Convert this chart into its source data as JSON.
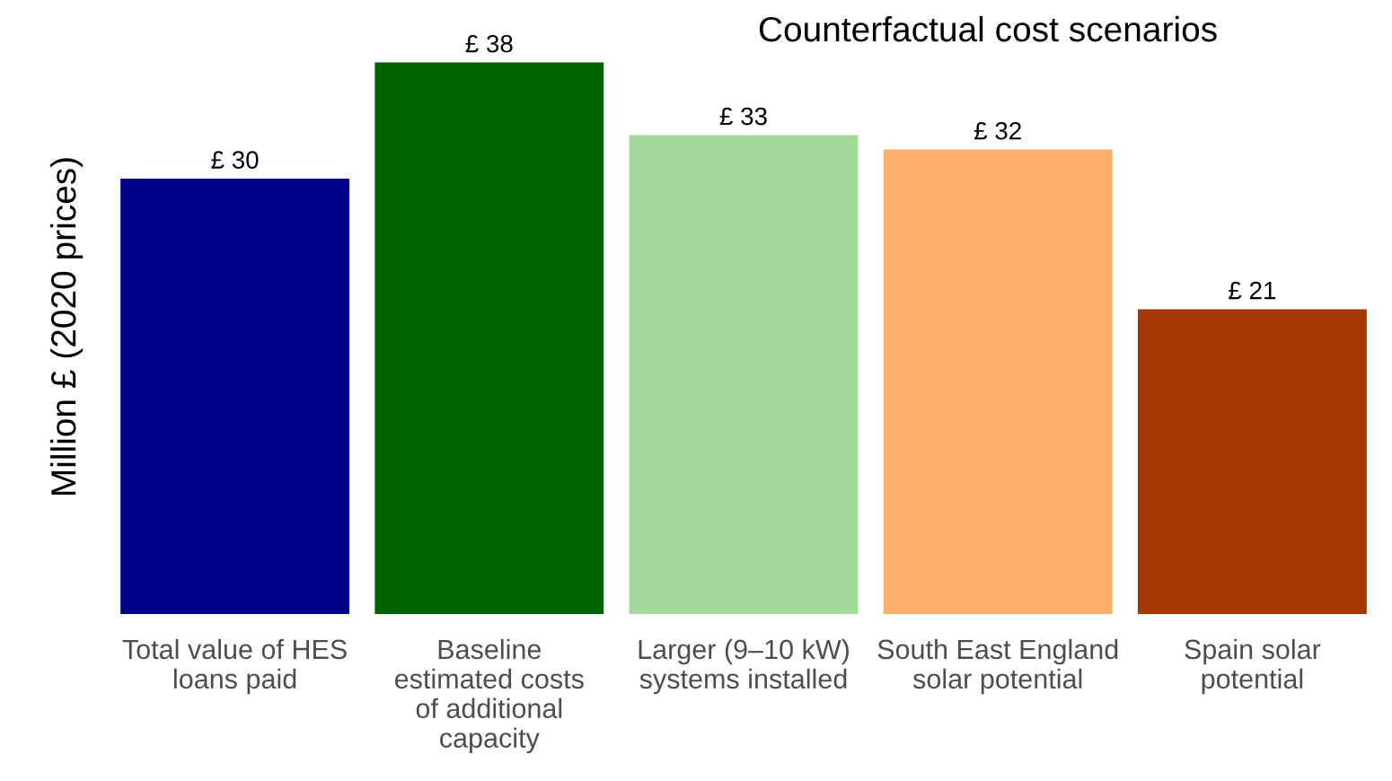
{
  "chart_data": {
    "type": "bar",
    "title": "Counterfactual cost scenarios",
    "ylabel": "Million £ (2020 prices)",
    "categories": [
      "Total value of HES\nloans paid",
      "Baseline\nestimated costs\nof additional\ncapacity",
      "Larger (9–10 kW)\nsystems installed",
      "South East England\nsolar potential",
      "Spain solar\npotential"
    ],
    "values": [
      30,
      38,
      33,
      32,
      21
    ],
    "colors": [
      "#00008b",
      "#006400",
      "#a3d89b",
      "#fdae6b",
      "#a63603"
    ],
    "value_labels": [
      "£ 30",
      "£ 38",
      "£ 33",
      "£ 32",
      "£ 21"
    ],
    "grid": false,
    "legend": false,
    "tick_labels": "x"
  }
}
